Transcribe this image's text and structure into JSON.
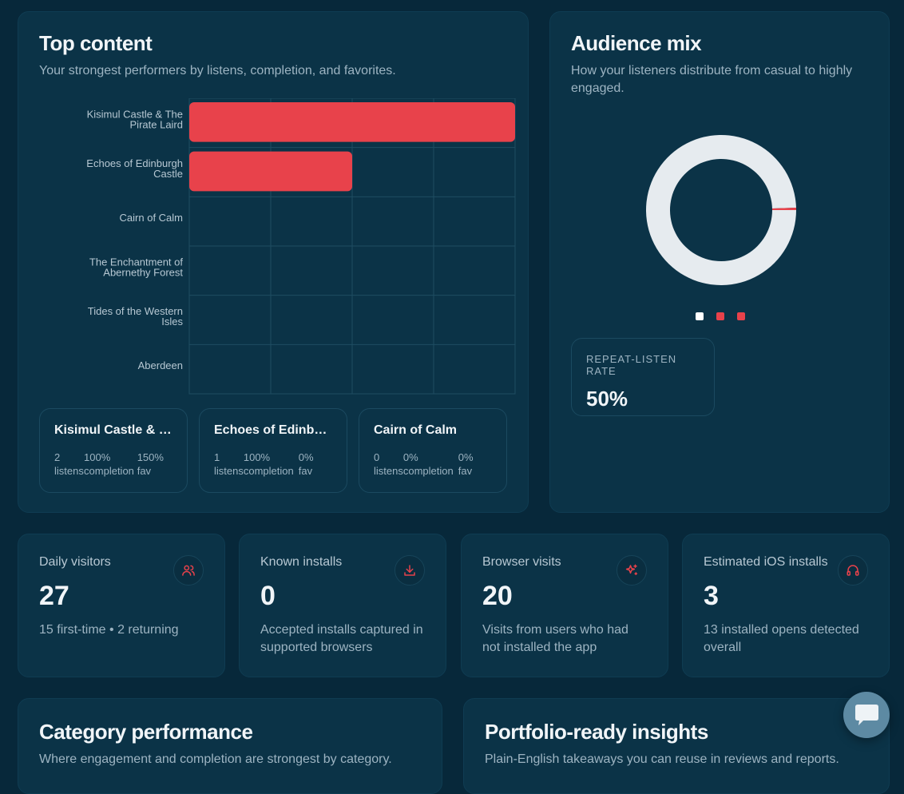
{
  "top_content": {
    "title": "Top content",
    "subtitle": "Your strongest performers by listens, completion, and favorites.",
    "chart_data": {
      "type": "bar",
      "orientation": "horizontal",
      "categories": [
        [
          "Kisimul Castle & The",
          "Pirate Laird"
        ],
        [
          "Echoes of Edinburgh",
          "Castle"
        ],
        [
          "Cairn of Calm"
        ],
        [
          "The Enchantment of",
          "Abernethy Forest"
        ],
        [
          "Tides of the Western",
          "Isles"
        ],
        [
          "Aberdeen"
        ]
      ],
      "values": [
        2,
        1,
        0,
        0,
        0,
        0
      ],
      "xlim": [
        0,
        2
      ],
      "grid": true,
      "bar_color": "#e8424b"
    },
    "mini_cards": [
      {
        "title": "Kisimul Castle & T...",
        "listens": "2",
        "listens_label": "listens",
        "completion": "100%",
        "completion_label": "completion",
        "fav": "150%",
        "fav_label": "fav"
      },
      {
        "title": "Echoes of Edinbur...",
        "listens": "1",
        "listens_label": "listens",
        "completion": "100%",
        "completion_label": "completion",
        "fav": "0%",
        "fav_label": "fav"
      },
      {
        "title": "Cairn of Calm",
        "listens": "0",
        "listens_label": "listens",
        "completion": "0%",
        "completion_label": "completion",
        "fav": "0%",
        "fav_label": "fav"
      }
    ]
  },
  "audience_mix": {
    "title": "Audience mix",
    "subtitle": "How your listeners distribute from casual to highly engaged.",
    "donut": {
      "segments": [
        {
          "value": 99.5,
          "color": "#e6ebef"
        },
        {
          "value": 0.5,
          "color": "#e8424b"
        }
      ]
    },
    "legend_colors": [
      "#ffffff",
      "#e8424b",
      "#e8424b"
    ],
    "repeat_label": "REPEAT-LISTEN RATE",
    "repeat_value": "50%"
  },
  "stats": [
    {
      "label": "Daily visitors",
      "value": "27",
      "desc": "15 first-time • 2 returning",
      "icon": "users-icon"
    },
    {
      "label": "Known installs",
      "value": "0",
      "desc": "Accepted installs captured in supported browsers",
      "icon": "download-icon"
    },
    {
      "label": "Browser visits",
      "value": "20",
      "desc": "Visits from users who had not installed the app",
      "icon": "sparkle-icon"
    },
    {
      "label": "Estimated iOS installs",
      "value": "3",
      "desc": "13 installed opens detected overall",
      "icon": "headphones-icon"
    }
  ],
  "category": {
    "title": "Category performance",
    "subtitle": "Where engagement and completion are strongest by category."
  },
  "insights": {
    "title": "Portfolio-ready insights",
    "subtitle": "Plain-English takeaways you can reuse in reviews and reports."
  },
  "colors": {
    "accent": "#e8424b",
    "background": "#07283a",
    "card": "#0b3347"
  }
}
